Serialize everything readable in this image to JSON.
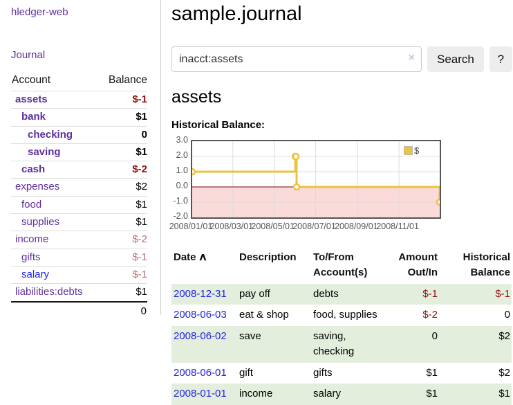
{
  "app": {
    "brand": "hledger-web"
  },
  "nav": {
    "journal": "Journal"
  },
  "sidebar": {
    "header": {
      "account": "Account",
      "balance": "Balance"
    },
    "accounts": [
      {
        "name": "assets",
        "depth": 1,
        "bold": true,
        "balance": "$-1",
        "balance_tone": "neg-strong"
      },
      {
        "name": "bank",
        "depth": 2,
        "bold": true,
        "balance": "$1",
        "balance_tone": "normal"
      },
      {
        "name": "checking",
        "depth": 3,
        "bold": true,
        "balance": "0",
        "balance_tone": "normal"
      },
      {
        "name": "saving",
        "depth": 3,
        "bold": true,
        "balance": "$1",
        "balance_tone": "normal"
      },
      {
        "name": "cash",
        "depth": 2,
        "bold": true,
        "balance": "$-2",
        "balance_tone": "neg-strong"
      },
      {
        "name": "expenses",
        "depth": 1,
        "bold": false,
        "balance": "$2",
        "balance_tone": "normal"
      },
      {
        "name": "food",
        "depth": 2,
        "bold": false,
        "balance": "$1",
        "balance_tone": "normal"
      },
      {
        "name": "supplies",
        "depth": 2,
        "bold": false,
        "balance": "$1",
        "balance_tone": "normal"
      },
      {
        "name": "income",
        "depth": 1,
        "bold": false,
        "balance": "$-2",
        "balance_tone": "neg-soft"
      },
      {
        "name": "gifts",
        "depth": 2,
        "bold": false,
        "balance": "$-1",
        "balance_tone": "neg-soft"
      },
      {
        "name": "salary",
        "depth": 2,
        "bold": false,
        "balance": "$-1",
        "balance_tone": "neg-soft",
        "link_tone": "blue"
      },
      {
        "name": "liabilities:debts",
        "depth": 1,
        "bold": false,
        "balance": "$1",
        "balance_tone": "normal"
      }
    ],
    "total": "0"
  },
  "header": {
    "title": "sample.journal"
  },
  "search": {
    "query": "inacct:assets",
    "clear_icon": "×",
    "button": "Search",
    "help_button": "?"
  },
  "account_page": {
    "heading": "assets",
    "chart_label": "Historical Balance:"
  },
  "chart_data": {
    "type": "line",
    "step": true,
    "title": "Historical Balance",
    "x": [
      "2008-01-01",
      "2008-06-01",
      "2008-06-02",
      "2008-06-03",
      "2008-12-31"
    ],
    "series": [
      {
        "name": "$",
        "values": [
          1,
          2,
          2,
          0,
          -1
        ]
      }
    ],
    "xlim": [
      "2008-01-01",
      "2008-12-31"
    ],
    "ylim": [
      -2,
      3
    ],
    "y_ticks": [
      "3.0",
      "2.0",
      "1.0",
      "0.0",
      "-1.0",
      "-2.0"
    ],
    "x_ticks": [
      "2008/01/01",
      "2008/03/01",
      "2008/05/01",
      "2008/07/01",
      "2008/09/01",
      "2008/11/01"
    ],
    "legend": [
      {
        "label": "$",
        "color": "#edc240"
      }
    ],
    "legend_position": "top-right",
    "grid": true,
    "line_color": "#edc240",
    "marker_fill": "#ffffff",
    "negative_fill": "#fbdada",
    "zero_line_color": "#8b0000",
    "grid_color": "#dcdcdc",
    "border_color": "#545454"
  },
  "register": {
    "sort_icon": "∧",
    "columns": [
      {
        "label": "Date",
        "sorted": true
      },
      {
        "label": "Description"
      },
      {
        "label": "To/From Account(s)"
      },
      {
        "label": "Amount Out/In",
        "align": "right"
      },
      {
        "label": "Historical Balance",
        "align": "right"
      }
    ],
    "rows": [
      {
        "date": "2008-12-31",
        "description": "pay off",
        "accounts": "debts",
        "amount": "$-1",
        "amount_tone": "neg",
        "balance": "$-1",
        "balance_tone": "neg"
      },
      {
        "date": "2008-06-03",
        "description": "eat & shop",
        "accounts": "food, supplies",
        "amount": "$-2",
        "amount_tone": "neg",
        "balance": "0",
        "balance_tone": "normal"
      },
      {
        "date": "2008-06-02",
        "description": "save",
        "accounts": "saving, checking",
        "amount": "0",
        "amount_tone": "normal",
        "balance": "$2",
        "balance_tone": "normal"
      },
      {
        "date": "2008-06-01",
        "description": "gift",
        "accounts": "gifts",
        "amount": "$1",
        "amount_tone": "normal",
        "balance": "$2",
        "balance_tone": "normal"
      },
      {
        "date": "2008-01-01",
        "description": "income",
        "accounts": "salary",
        "amount": "$1",
        "amount_tone": "normal",
        "balance": "$1",
        "balance_tone": "normal"
      }
    ]
  },
  "colors": {
    "link_purple": "#5e2f9d",
    "link_blue": "#2323e6",
    "negative_strong": "#8b1212",
    "negative_soft": "#b86f6f",
    "stripe_green": "#e4eedd",
    "chart_gold": "#edc240",
    "button_gray": "#ededed"
  }
}
